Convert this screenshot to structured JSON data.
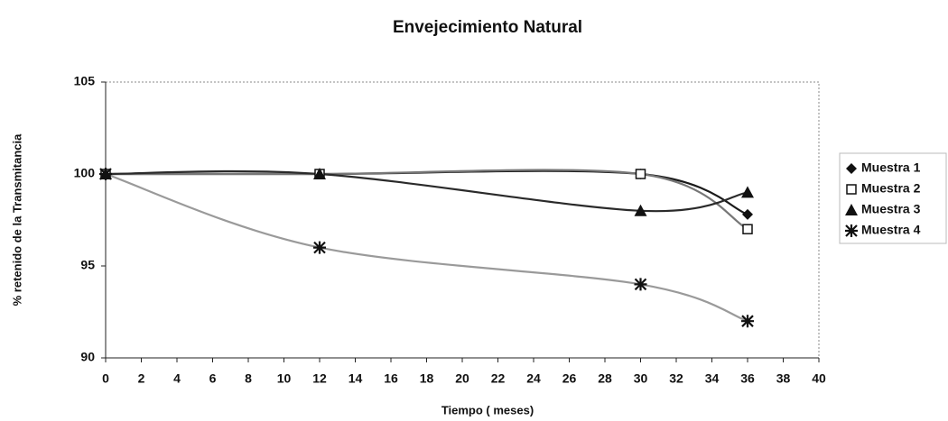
{
  "chart_data": {
    "type": "line",
    "title": "Envejecimiento Natural",
    "x_label": "Tiempo ( meses)",
    "y_label": "% retenido de la Transmitancia",
    "x": [
      0,
      12,
      30,
      36
    ],
    "series": [
      {
        "name": "Muestra 1",
        "color": "#1a1a1a",
        "marker": "diamond",
        "values": [
          100,
          100,
          100,
          97.8
        ]
      },
      {
        "name": "Muestra 2",
        "color": "#777777",
        "marker": "square",
        "values": [
          100,
          100,
          100,
          97
        ]
      },
      {
        "name": "Muestra 3",
        "color": "#2a2a2a",
        "marker": "triangle",
        "values": [
          100,
          100,
          98,
          99
        ]
      },
      {
        "name": "Muestra 4",
        "color": "#9a9a9a",
        "marker": "star",
        "values": [
          100,
          96,
          94,
          92
        ]
      }
    ],
    "xlim": [
      0,
      40
    ],
    "xticks": [
      0,
      2,
      4,
      6,
      8,
      10,
      12,
      14,
      16,
      18,
      20,
      22,
      24,
      26,
      28,
      30,
      32,
      34,
      36,
      38,
      40
    ],
    "ylim": [
      90,
      105
    ],
    "yticks": [
      90,
      95,
      100,
      105
    ],
    "grid": false,
    "smooth": true,
    "legend": "right"
  }
}
